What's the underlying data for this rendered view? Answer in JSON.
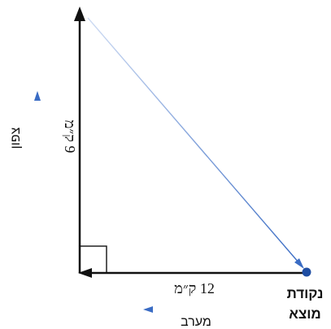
{
  "diagram": {
    "north_label": "צפון",
    "west_label": "מערב",
    "vertical_distance": "9 ק״מ",
    "horizontal_distance": "12 ק״מ",
    "origin_label_line1": "נקודת",
    "origin_label_line2": "מוצא"
  },
  "colors": {
    "axis": "#111111",
    "direction_arrow": "#3a6cc4",
    "hypotenuse": "#3a6cc4",
    "origin_point": "#1f4ea3"
  }
}
